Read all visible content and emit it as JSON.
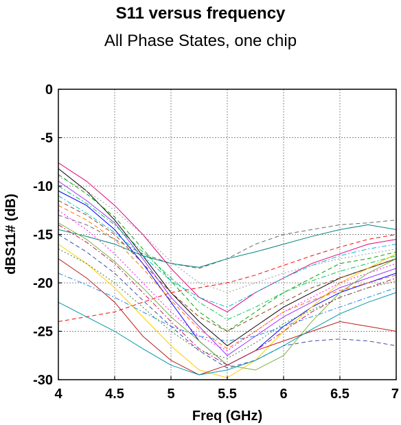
{
  "chart_data": {
    "type": "line",
    "title": "S11 versus frequency",
    "subtitle": "All Phase States, one chip",
    "xlabel": "Freq (GHz)",
    "ylabel": "dBS11# (dB)",
    "xlim": [
      4,
      7
    ],
    "ylim": [
      -30,
      0
    ],
    "xticks": [
      4,
      4.5,
      5,
      5.5,
      6,
      6.5,
      7
    ],
    "xtick_labels": [
      "4",
      "4.5",
      "5",
      "5.5",
      "6",
      "6.5",
      "7"
    ],
    "yticks": [
      0,
      -5,
      -10,
      -15,
      -20,
      -25,
      -30
    ],
    "ytick_labels": [
      "0",
      "-5",
      "-10",
      "-15",
      "-20",
      "-25",
      "-30"
    ],
    "grid": true,
    "x": [
      4.0,
      4.25,
      4.5,
      4.75,
      5.0,
      5.25,
      5.5,
      5.75,
      6.0,
      6.25,
      6.5,
      6.75,
      7.0
    ],
    "series": [
      {
        "color": "#000000",
        "dash": "solid",
        "values": [
          -8.2,
          -10.5,
          -13.5,
          -17.2,
          -21.0,
          -24.0,
          -26.5,
          -24.5,
          -22.5,
          -21.0,
          -19.5,
          -18.5,
          -17.5
        ]
      },
      {
        "color": "#e4007c",
        "dash": "solid",
        "values": [
          -7.6,
          -9.5,
          -12.0,
          -15.0,
          -18.5,
          -21.5,
          -23.0,
          -21.0,
          -19.5,
          -18.0,
          -17.0,
          -16.0,
          -15.5
        ]
      },
      {
        "color": "#0000ff",
        "dash": "solid",
        "values": [
          -10.5,
          -12.0,
          -14.5,
          -18.0,
          -22.0,
          -26.0,
          -28.5,
          -27.0,
          -24.5,
          -22.5,
          -21.0,
          -20.0,
          -19.0
        ]
      },
      {
        "color": "#00a000",
        "dash": "dash",
        "values": [
          -8.8,
          -10.8,
          -13.2,
          -16.5,
          -19.8,
          -23.0,
          -25.0,
          -23.0,
          -21.0,
          -19.5,
          -18.0,
          -17.5,
          -16.8
        ]
      },
      {
        "color": "#9933ff",
        "dash": "solid",
        "values": [
          -9.5,
          -11.5,
          -13.8,
          -17.5,
          -21.5,
          -24.5,
          -27.5,
          -25.5,
          -23.5,
          -22.0,
          -20.5,
          -19.5,
          -18.5
        ]
      },
      {
        "color": "#ffcc00",
        "dash": "solid",
        "values": [
          -16.0,
          -18.0,
          -20.5,
          -23.5,
          -26.5,
          -29.0,
          -29.8,
          -28.0,
          -25.0,
          -22.5,
          -20.0,
          -18.5,
          -17.0
        ]
      },
      {
        "color": "#00bcd4",
        "dash": "dashdot",
        "values": [
          -11.0,
          -12.8,
          -14.8,
          -17.2,
          -19.8,
          -21.5,
          -22.5,
          -21.0,
          -19.5,
          -18.2,
          -17.2,
          -16.5,
          -16.0
        ]
      },
      {
        "color": "#ff0000",
        "dash": "dash",
        "values": [
          -24.0,
          -23.5,
          -23.0,
          -22.0,
          -21.0,
          -20.5,
          -20.0,
          -19.2,
          -18.2,
          -17.2,
          -16.3,
          -15.5,
          -15.0
        ]
      },
      {
        "color": "#666666",
        "dash": "dash",
        "values": [
          -13.0,
          -14.0,
          -15.5,
          -17.0,
          -18.0,
          -18.5,
          -17.5,
          -16.0,
          -15.0,
          -14.5,
          -14.0,
          -13.8,
          -13.5
        ]
      },
      {
        "color": "#008080",
        "dash": "solid",
        "values": [
          -14.5,
          -15.2,
          -16.0,
          -17.2,
          -18.0,
          -18.4,
          -17.5,
          -16.8,
          -16.0,
          -15.2,
          -14.5,
          -14.0,
          -14.5
        ]
      },
      {
        "color": "#ff00ff",
        "dash": "dot",
        "values": [
          -12.5,
          -14.5,
          -17.0,
          -20.0,
          -23.0,
          -25.5,
          -27.0,
          -25.0,
          -23.0,
          -21.5,
          -20.0,
          -19.0,
          -18.0
        ]
      },
      {
        "color": "#7cb342",
        "dash": "solid",
        "values": [
          -13.8,
          -15.5,
          -17.8,
          -20.5,
          -23.5,
          -26.0,
          -28.5,
          -29.0,
          -27.5,
          -24.0,
          -21.0,
          -19.0,
          -17.5
        ]
      },
      {
        "color": "#1e88e5",
        "dash": "dashdot",
        "values": [
          -19.0,
          -20.2,
          -21.5,
          -23.0,
          -24.5,
          -25.5,
          -26.0,
          -25.5,
          -24.5,
          -23.5,
          -22.5,
          -21.5,
          -20.5
        ]
      },
      {
        "color": "#8b4513",
        "dash": "dash",
        "values": [
          -11.5,
          -13.0,
          -15.0,
          -18.0,
          -21.0,
          -23.5,
          -25.0,
          -23.5,
          -22.0,
          -20.5,
          -19.5,
          -18.5,
          -17.5
        ]
      },
      {
        "color": "#00c853",
        "dash": "dashdot",
        "values": [
          -10.0,
          -11.8,
          -14.0,
          -16.8,
          -19.5,
          -22.0,
          -23.8,
          -22.5,
          -21.0,
          -19.8,
          -18.8,
          -18.0,
          -17.2
        ]
      },
      {
        "color": "#b71c1c",
        "dash": "solid",
        "values": [
          -17.5,
          -19.5,
          -22.0,
          -25.5,
          -28.0,
          -29.5,
          -28.5,
          -27.0,
          -26.0,
          -25.0,
          -24.0,
          -24.5,
          -25.0
        ]
      },
      {
        "color": "#3949ab",
        "dash": "dash",
        "values": [
          -15.0,
          -16.8,
          -19.0,
          -21.8,
          -24.5,
          -27.0,
          -28.8,
          -28.0,
          -26.5,
          -26.0,
          -25.8,
          -26.0,
          -26.5
        ]
      },
      {
        "color": "#999999",
        "dash": "dot",
        "values": [
          -9.0,
          -10.5,
          -12.5,
          -15.0,
          -17.8,
          -20.0,
          -21.0,
          -20.0,
          -19.0,
          -18.2,
          -17.5,
          -17.0,
          -16.5
        ]
      },
      {
        "color": "#ff6f00",
        "dash": "dash",
        "values": [
          -12.0,
          -13.5,
          -15.5,
          -18.5,
          -21.8,
          -24.8,
          -26.8,
          -25.0,
          -23.0,
          -21.8,
          -20.8,
          -20.0,
          -19.2
        ]
      },
      {
        "color": "#0097a7",
        "dash": "solid",
        "values": [
          -22.0,
          -23.5,
          -25.0,
          -26.8,
          -28.5,
          -29.5,
          -29.0,
          -28.0,
          -26.5,
          -24.8,
          -23.2,
          -22.0,
          -21.0
        ]
      },
      {
        "color": "#c2185b",
        "dash": "dashdot",
        "values": [
          -14.0,
          -15.8,
          -18.0,
          -21.0,
          -24.0,
          -26.8,
          -28.5,
          -27.0,
          -25.0,
          -23.0,
          -21.5,
          -20.5,
          -19.5
        ]
      },
      {
        "color": "#2e7d32",
        "dash": "dot",
        "values": [
          -16.5,
          -18.0,
          -20.0,
          -22.5,
          -25.0,
          -27.0,
          -27.8,
          -26.2,
          -24.2,
          -22.8,
          -21.5,
          -20.5,
          -19.8
        ]
      }
    ]
  }
}
